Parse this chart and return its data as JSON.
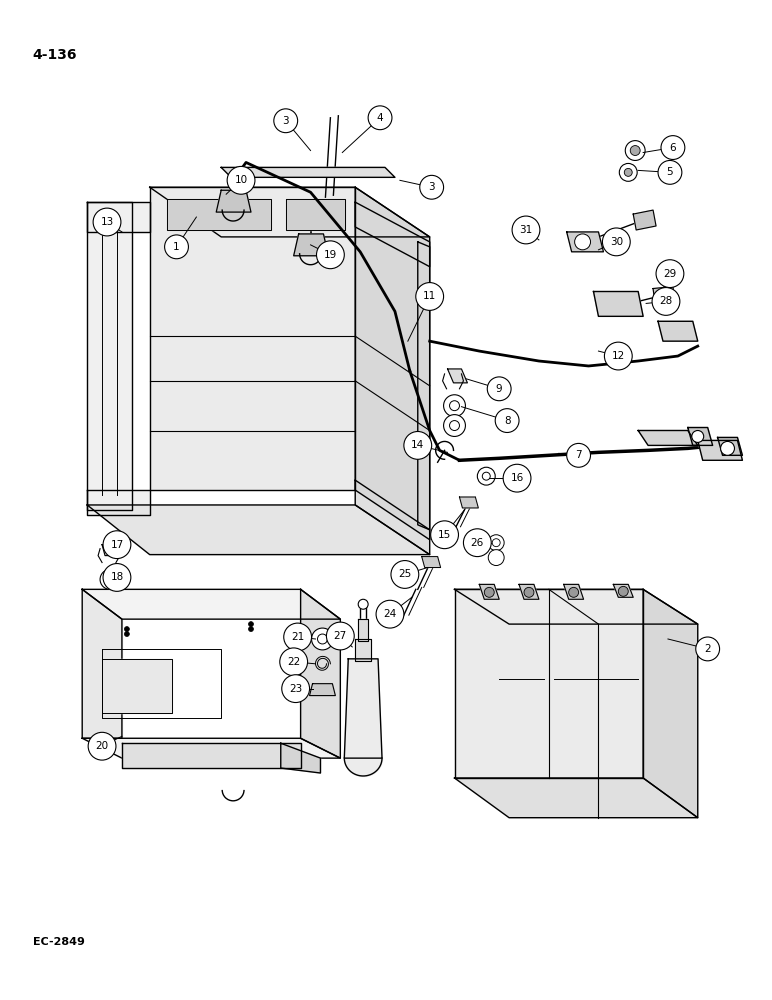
{
  "title": "4-136",
  "footer": "EC-2849",
  "background_color": "#ffffff",
  "line_color": "#000000",
  "fig_width": 7.72,
  "fig_height": 10.0,
  "dpi": 100
}
